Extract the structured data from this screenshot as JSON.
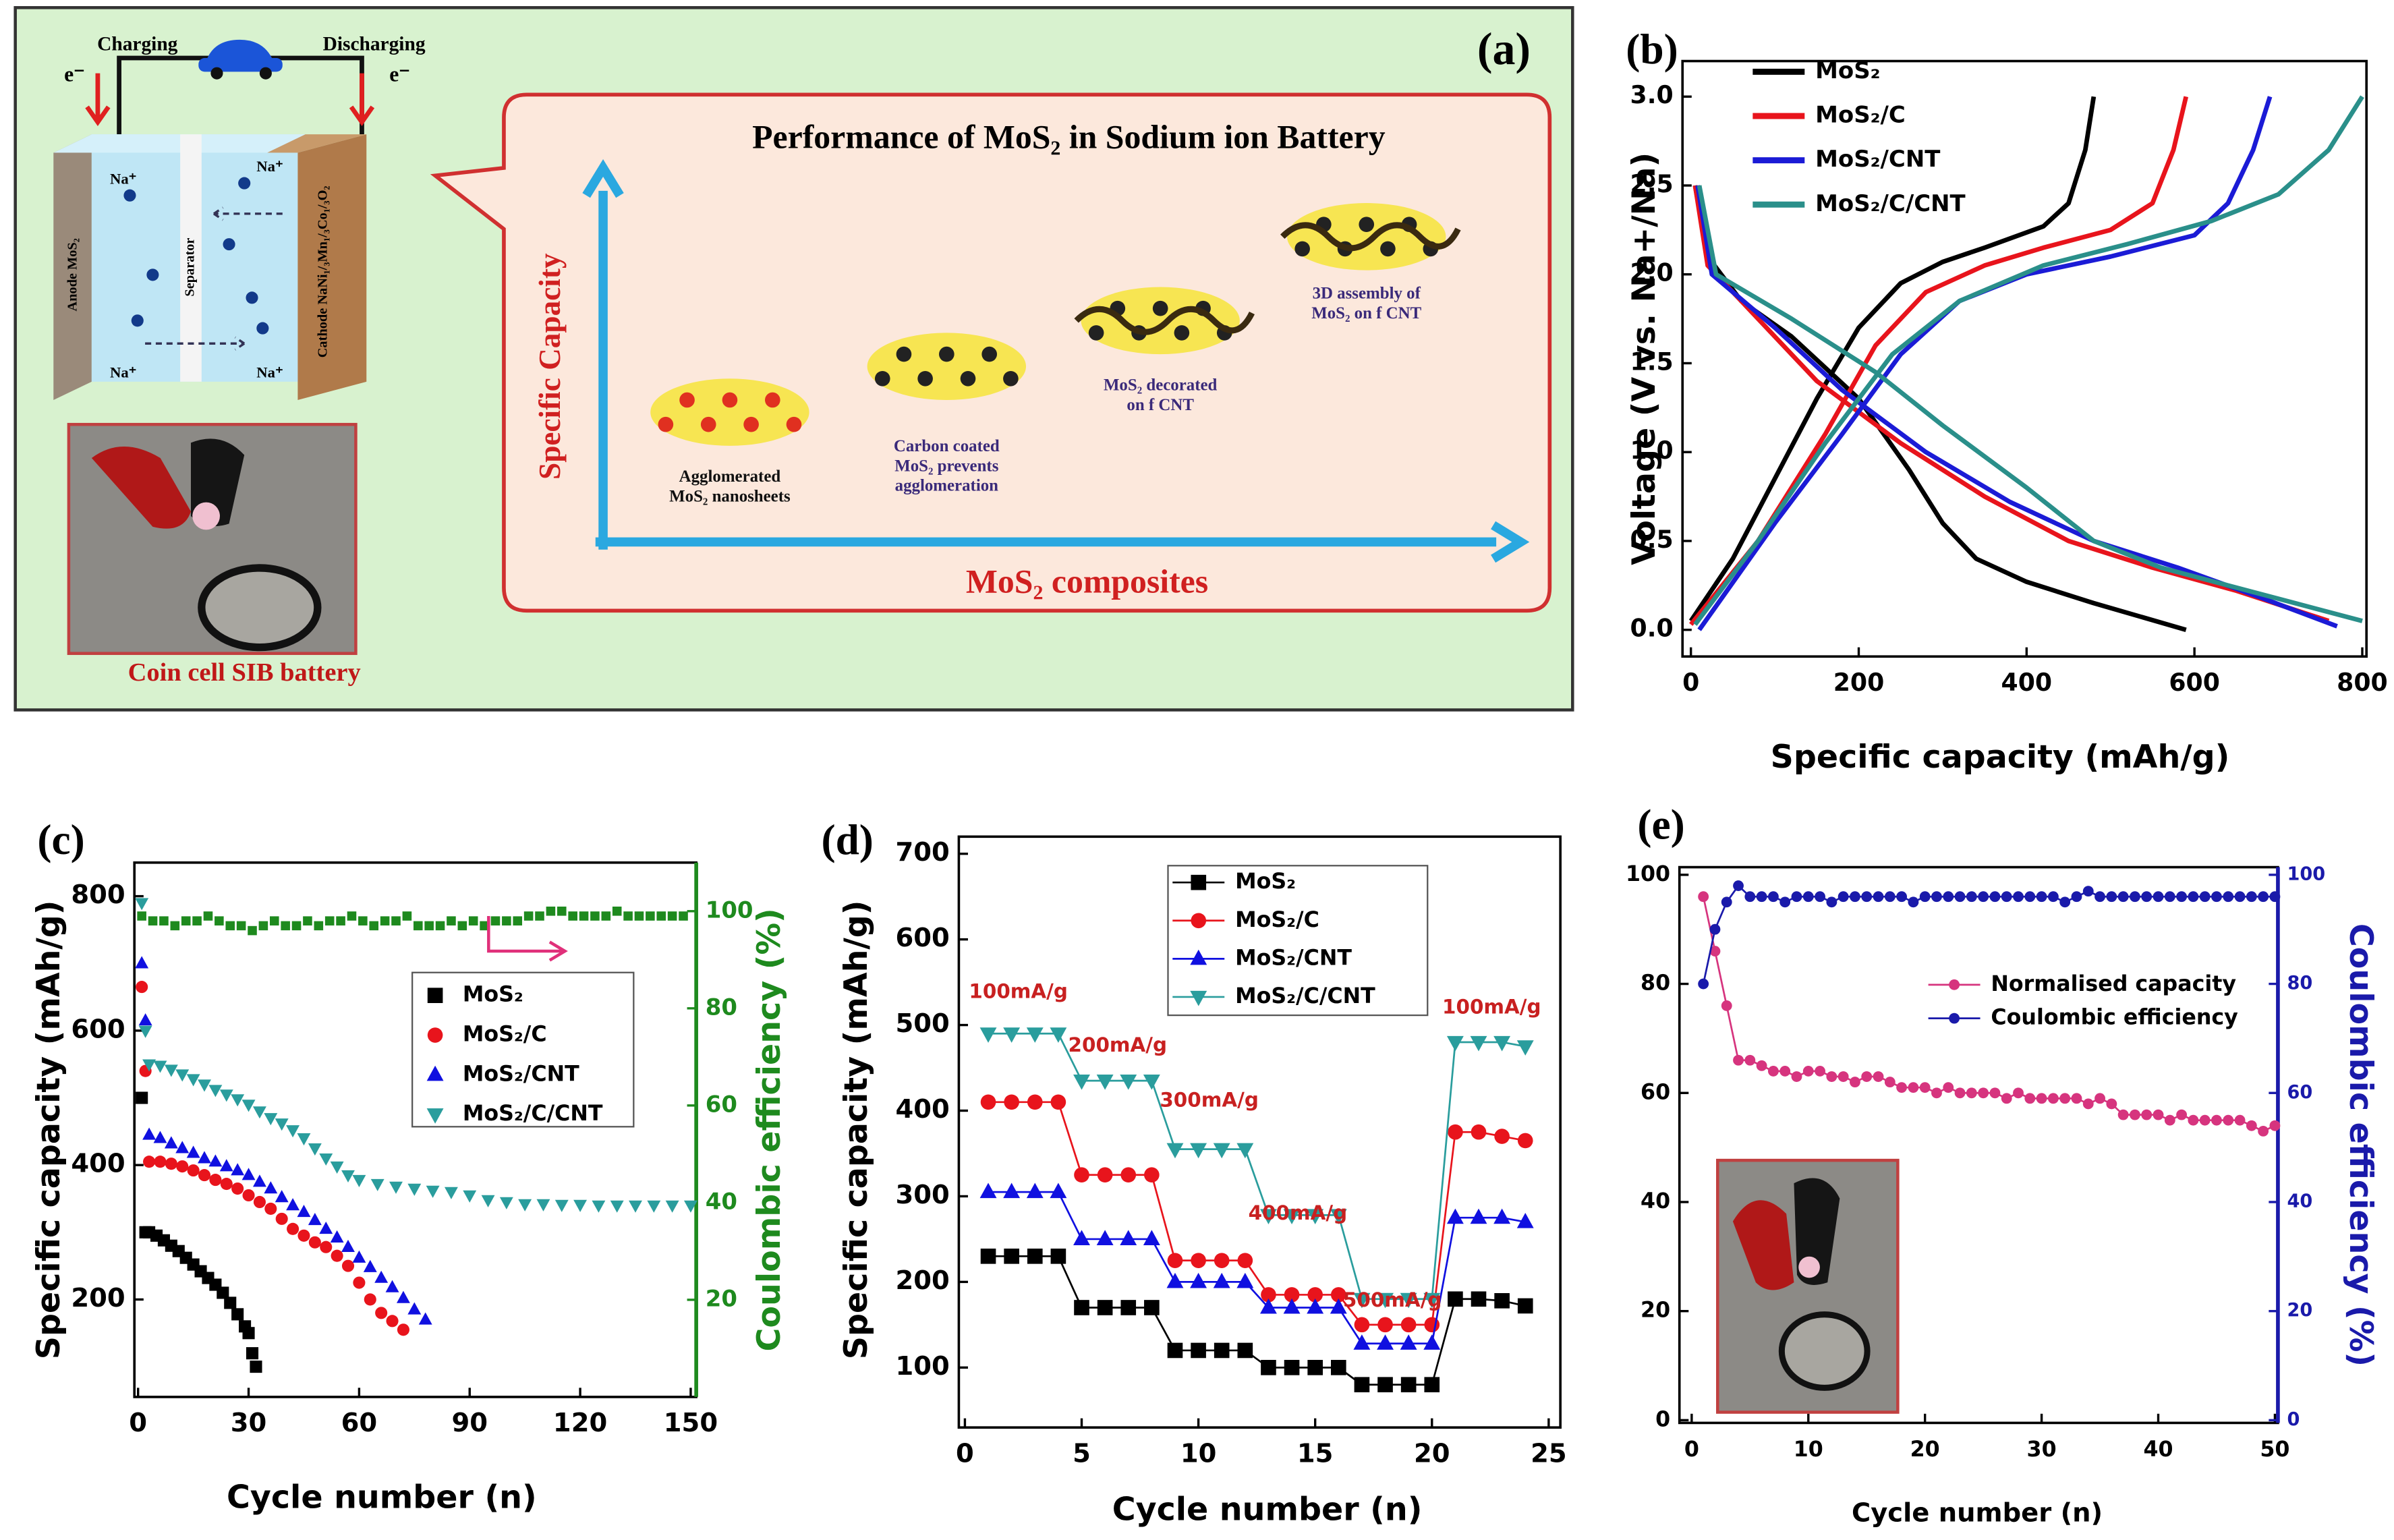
{
  "diagram": {
    "label": "(a)",
    "charging": "Charging",
    "discharging": "Discharging",
    "electron": "e⁻",
    "ion": "Na⁺",
    "anode": "Anode MoS₂",
    "separator": "Separator",
    "cathode": "Cathode NaNi₁/₃Mn₁/₃Co₁/₃O₂",
    "photo_caption": "Coin cell SIB battery",
    "title": "Performance of MoS₂ in Sodium ion Battery",
    "y_axis": "Specific Capacity",
    "x_axis": "MoS₂ composites",
    "stages": [
      [
        "Agglomerated",
        "MoS₂ nanosheets"
      ],
      [
        "Carbon coated",
        "MoS₂ prevents",
        "agglomeration"
      ],
      [
        "MoS₂ decorated",
        "on f CNT"
      ],
      [
        "3D assembly of",
        "MoS₂ on f CNT"
      ]
    ]
  },
  "chart_data": [
    {
      "type": "line",
      "label": "(b)",
      "xlabel": "Specific capacity (mAh/g)",
      "ylabel": "Voltage (V vs. Na+/Na)",
      "xlim": [
        -10,
        805
      ],
      "xticks": [
        0,
        200,
        400,
        600,
        800
      ],
      "ylim": [
        -0.15,
        3.2
      ],
      "yticks": [
        {
          "value": 0,
          "label": "0.0"
        },
        0.5,
        {
          "value": 1,
          "label": "1.0"
        },
        1.5,
        {
          "value": 2,
          "label": "2.0"
        },
        2.5,
        {
          "value": 3,
          "label": "3.0"
        }
      ],
      "series": [
        {
          "name": "MoS₂",
          "color": "#000000",
          "x": [
            5,
            20,
            60,
            120,
            200,
            260,
            300,
            340,
            400,
            480,
            590,
            null,
            0,
            50,
            100,
            150,
            200,
            250,
            300,
            350,
            420,
            450,
            470,
            480
          ],
          "values": [
            2.5,
            2.1,
            1.85,
            1.65,
            1.3,
            0.9,
            0.6,
            0.4,
            0.27,
            0.15,
            0,
            null,
            0.05,
            0.4,
            0.85,
            1.3,
            1.7,
            1.95,
            2.07,
            2.15,
            2.27,
            2.4,
            2.7,
            3.0
          ]
        },
        {
          "name": "MoS₂/C",
          "color": "#e8141c",
          "x": [
            5,
            20,
            80,
            150,
            250,
            350,
            450,
            550,
            650,
            760,
            null,
            0,
            80,
            160,
            220,
            280,
            350,
            420,
            500,
            550,
            575,
            590
          ],
          "values": [
            2.5,
            2.05,
            1.75,
            1.4,
            1.05,
            0.75,
            0.5,
            0.35,
            0.22,
            0.05,
            null,
            0.03,
            0.5,
            1.1,
            1.6,
            1.9,
            2.05,
            2.15,
            2.25,
            2.4,
            2.7,
            3.0
          ]
        },
        {
          "name": "MoS₂/CNT",
          "color": "#1b1bd6",
          "x": [
            8,
            25,
            100,
            180,
            280,
            380,
            480,
            580,
            680,
            770,
            null,
            10,
            100,
            180,
            250,
            320,
            400,
            500,
            600,
            640,
            670,
            690
          ],
          "values": [
            2.5,
            2.0,
            1.7,
            1.35,
            1.0,
            0.72,
            0.5,
            0.35,
            0.18,
            0.02,
            null,
            0,
            0.6,
            1.1,
            1.55,
            1.85,
            2.0,
            2.1,
            2.22,
            2.4,
            2.7,
            3.0
          ]
        },
        {
          "name": "MoS₂/C/CNT",
          "color": "#2a8f8a",
          "x": [
            10,
            30,
            120,
            220,
            300,
            400,
            480,
            560,
            680,
            800,
            null,
            5,
            80,
            160,
            240,
            320,
            420,
            520,
            620,
            700,
            760,
            800
          ],
          "values": [
            2.5,
            2.0,
            1.75,
            1.45,
            1.15,
            0.8,
            0.5,
            0.35,
            0.2,
            0.05,
            null,
            0.03,
            0.5,
            1.05,
            1.55,
            1.85,
            2.05,
            2.17,
            2.3,
            2.45,
            2.7,
            3.0
          ]
        }
      ]
    },
    {
      "type": "scatter",
      "label": "(c)",
      "xlabel": "Cycle number (n)",
      "ylabel": "Specific capacity (mAh/g)",
      "y2label": "Coulombic efficiency (%)",
      "y2_color": "#1e8a1e",
      "xlim": [
        -1,
        151.5
      ],
      "xticks": [
        0,
        30,
        60,
        90,
        120,
        150
      ],
      "ylim": [
        55,
        850
      ],
      "yticks": [
        200,
        400,
        600,
        800
      ],
      "y2lim": [
        0,
        110
      ],
      "y2ticks": [
        20,
        40,
        60,
        80,
        100
      ],
      "series": [
        {
          "name": "MoS₂",
          "color": "#000000",
          "marker": "square",
          "x": [
            1,
            2,
            3,
            5,
            7,
            9,
            11,
            13,
            15,
            17,
            19,
            21,
            23,
            25,
            27,
            29,
            30,
            31,
            32
          ],
          "values": [
            500,
            300,
            300,
            295,
            288,
            280,
            272,
            262,
            252,
            242,
            232,
            222,
            210,
            195,
            178,
            160,
            150,
            120,
            100
          ]
        },
        {
          "name": "MoS₂/C",
          "color": "#e8141c",
          "marker": "circle",
          "x": [
            1,
            2,
            3,
            6,
            9,
            12,
            15,
            18,
            21,
            24,
            27,
            30,
            33,
            36,
            39,
            42,
            45,
            48,
            51,
            54,
            57,
            60,
            63,
            66,
            69,
            72
          ],
          "values": [
            665,
            540,
            405,
            405,
            402,
            398,
            392,
            385,
            378,
            372,
            365,
            355,
            345,
            335,
            320,
            305,
            295,
            285,
            278,
            265,
            250,
            225,
            200,
            180,
            168,
            155
          ]
        },
        {
          "name": "MoS₂/CNT",
          "color": "#1010e0",
          "marker": "triangle",
          "x": [
            1,
            2,
            3,
            6,
            9,
            12,
            15,
            18,
            21,
            24,
            27,
            30,
            33,
            36,
            39,
            42,
            45,
            48,
            51,
            54,
            57,
            60,
            63,
            66,
            69,
            72,
            75,
            78
          ],
          "values": [
            700,
            615,
            445,
            440,
            432,
            425,
            418,
            410,
            405,
            398,
            392,
            385,
            375,
            365,
            352,
            340,
            330,
            318,
            305,
            292,
            278,
            262,
            248,
            232,
            218,
            202,
            185,
            170
          ]
        },
        {
          "name": "MoS₂/C/CNT",
          "color": "#2a9d9d",
          "marker": "triangle-down",
          "x": [
            1,
            2,
            3,
            6,
            9,
            12,
            15,
            18,
            21,
            24,
            27,
            30,
            33,
            36,
            39,
            42,
            45,
            48,
            51,
            54,
            57,
            60,
            65,
            70,
            75,
            80,
            85,
            90,
            95,
            100,
            105,
            110,
            115,
            120,
            125,
            130,
            135,
            140,
            145,
            150
          ],
          "values": [
            790,
            600,
            550,
            548,
            542,
            535,
            528,
            520,
            512,
            505,
            498,
            490,
            480,
            470,
            462,
            452,
            440,
            425,
            410,
            398,
            385,
            378,
            372,
            368,
            365,
            362,
            360,
            355,
            348,
            345,
            342,
            342,
            341,
            341,
            340,
            340,
            340,
            340,
            340,
            340
          ]
        },
        {
          "color": "#1e8a1e",
          "marker": "square",
          "axis": "y2",
          "x": [
            1,
            4,
            7,
            10,
            13,
            16,
            19,
            22,
            25,
            28,
            31,
            34,
            37,
            40,
            43,
            46,
            49,
            52,
            55,
            58,
            61,
            64,
            67,
            70,
            73,
            76,
            79,
            82,
            85,
            88,
            91,
            94,
            97,
            100,
            103,
            106,
            109,
            112,
            115,
            118,
            121,
            124,
            127,
            130,
            133,
            136,
            139,
            142,
            145,
            148
          ],
          "values": [
            99,
            98,
            98,
            97,
            98,
            98,
            99,
            98,
            97,
            97,
            96,
            97,
            98,
            97,
            97,
            98,
            97,
            98,
            98,
            99,
            98,
            97,
            98,
            98,
            99,
            97,
            97,
            97,
            98,
            97,
            98,
            97,
            98,
            98,
            98,
            99,
            99,
            100,
            100,
            99,
            99,
            99,
            99,
            100,
            99,
            99,
            99,
            99,
            99,
            99
          ]
        }
      ]
    },
    {
      "type": "line",
      "label": "(d)",
      "xlabel": "Cycle number (n)",
      "ylabel": "Specific capacity (mAh/g)",
      "xlim": [
        -0.26,
        25.5
      ],
      "xticks": [
        0,
        5,
        10,
        15,
        20,
        25
      ],
      "ylim": [
        30,
        720
      ],
      "yticks": [
        100,
        200,
        300,
        400,
        500,
        600,
        700
      ],
      "x": [
        1,
        2,
        3,
        4,
        5,
        6,
        7,
        8,
        9,
        10,
        11,
        12,
        13,
        14,
        15,
        16,
        17,
        18,
        19,
        20,
        21,
        22,
        23,
        24
      ],
      "annotations": [
        "100mA/g",
        "200mA/g",
        "300mA/g",
        "400mA/g",
        "500mA/g",
        "100mA/g"
      ],
      "series": [
        {
          "name": "MoS₂",
          "color": "#000000",
          "marker": "square",
          "values": [
            230,
            230,
            230,
            230,
            170,
            170,
            170,
            170,
            120,
            120,
            120,
            120,
            100,
            100,
            100,
            100,
            80,
            80,
            80,
            80,
            180,
            180,
            178,
            172
          ]
        },
        {
          "name": "MoS₂/C",
          "color": "#e8141c",
          "marker": "circle",
          "values": [
            410,
            410,
            410,
            410,
            325,
            325,
            325,
            325,
            225,
            225,
            225,
            225,
            185,
            185,
            185,
            185,
            150,
            150,
            150,
            150,
            375,
            375,
            370,
            365
          ]
        },
        {
          "name": "MoS₂/CNT",
          "color": "#1010e0",
          "marker": "triangle",
          "values": [
            305,
            305,
            305,
            305,
            250,
            250,
            250,
            250,
            200,
            200,
            200,
            200,
            170,
            170,
            170,
            170,
            128,
            128,
            128,
            128,
            275,
            275,
            275,
            270
          ]
        },
        {
          "name": "MoS₂/C/CNT",
          "color": "#2a9d9d",
          "marker": "triangle-down",
          "values": [
            490,
            490,
            490,
            490,
            435,
            435,
            435,
            435,
            355,
            355,
            355,
            355,
            278,
            278,
            278,
            278,
            180,
            180,
            180,
            180,
            480,
            480,
            480,
            475
          ]
        }
      ]
    },
    {
      "type": "line",
      "label": "(e)",
      "xlabel": "Cycle number (n)",
      "y2label": "Coulombic efficiency (%)",
      "y2_color": "#1a1aaa",
      "xlim": [
        -1.05,
        50.26
      ],
      "xticks": [
        0,
        10,
        20,
        30,
        40,
        50
      ],
      "ylim": [
        -0.5,
        101.4
      ],
      "yticks": [
        0,
        20,
        40,
        60,
        80,
        100
      ],
      "y2lim": [
        -0.5,
        101.4
      ],
      "y2ticks": [
        0,
        20,
        40,
        60,
        80,
        100
      ],
      "x": [
        1,
        2,
        3,
        4,
        5,
        6,
        7,
        8,
        9,
        10,
        11,
        12,
        13,
        14,
        15,
        16,
        17,
        18,
        19,
        20,
        21,
        22,
        23,
        24,
        25,
        26,
        27,
        28,
        29,
        30,
        31,
        32,
        33,
        34,
        35,
        36,
        37,
        38,
        39,
        40,
        41,
        42,
        43,
        44,
        45,
        46,
        47,
        48,
        49,
        50
      ],
      "series": [
        {
          "name": "Normalised capacity",
          "color": "#d6347e",
          "marker": "circle",
          "values": [
            96,
            86,
            76,
            66,
            66,
            65,
            64,
            64,
            63,
            64,
            64,
            63,
            63,
            62,
            63,
            63,
            62,
            61,
            61,
            61,
            60,
            61,
            60,
            60,
            60,
            60,
            59,
            60,
            59,
            59,
            59,
            59,
            59,
            58,
            59,
            58,
            56,
            56,
            56,
            56,
            55,
            56,
            55,
            55,
            55,
            55,
            55,
            54,
            53,
            54
          ]
        },
        {
          "name": "Coulombic efficiency",
          "color": "#1a1aaa",
          "marker": "circle",
          "axis": "y2",
          "values": [
            80,
            90,
            95,
            98,
            96,
            96,
            96,
            95,
            96,
            96,
            96,
            95,
            96,
            96,
            96,
            96,
            96,
            96,
            95,
            96,
            96,
            96,
            96,
            96,
            96,
            96,
            96,
            96,
            96,
            96,
            96,
            95,
            96,
            97,
            96,
            96,
            96,
            96,
            96,
            96,
            96,
            96,
            96,
            96,
            96,
            96,
            96,
            96,
            96,
            96
          ]
        }
      ]
    }
  ]
}
